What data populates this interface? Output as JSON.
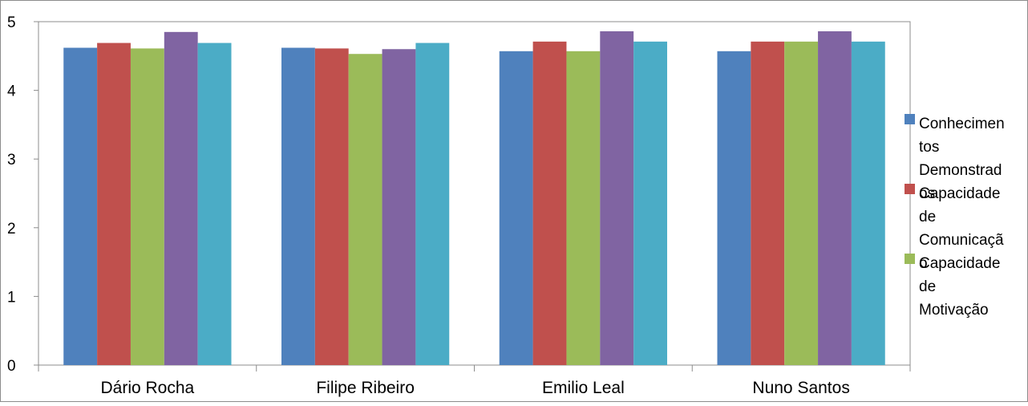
{
  "chart_data": {
    "type": "bar",
    "title": "",
    "xlabel": "",
    "ylabel": "",
    "ylim": [
      0,
      5
    ],
    "yticks": [
      "0",
      "1",
      "2",
      "3",
      "4",
      "5"
    ],
    "grid": false,
    "legend_placement": "right",
    "categories": [
      "Dário Rocha",
      "Filipe Ribeiro",
      "Emilio Leal",
      "Nuno Santos"
    ],
    "series": [
      {
        "name": "Conhecimentos Demonstrados",
        "color": "#4F81BD",
        "values": [
          4.62,
          4.62,
          4.57,
          4.57
        ]
      },
      {
        "name": "Capacidade de Comunicação",
        "color": "#C0504D",
        "values": [
          4.69,
          4.61,
          4.71,
          4.71
        ]
      },
      {
        "color": "#9BBB59",
        "values": [
          4.61,
          4.53,
          4.57,
          4.71
        ]
      },
      {
        "color": "#8064A2",
        "values": [
          4.85,
          4.6,
          4.86,
          4.86
        ]
      },
      {
        "color": "#4BACC6",
        "values": [
          4.69,
          4.69,
          4.71,
          4.71
        ]
      }
    ],
    "legend_entries": [
      {
        "series": 0,
        "lines": [
          "Conhecimen",
          "tos",
          "Demonstrad",
          "os"
        ]
      },
      {
        "series": 1,
        "lines": [
          "Capacidade",
          "de",
          "Comunicaçã",
          "o"
        ]
      },
      {
        "series": 2,
        "lines": [
          "Capacidade",
          "de",
          "Motivação"
        ]
      }
    ]
  }
}
